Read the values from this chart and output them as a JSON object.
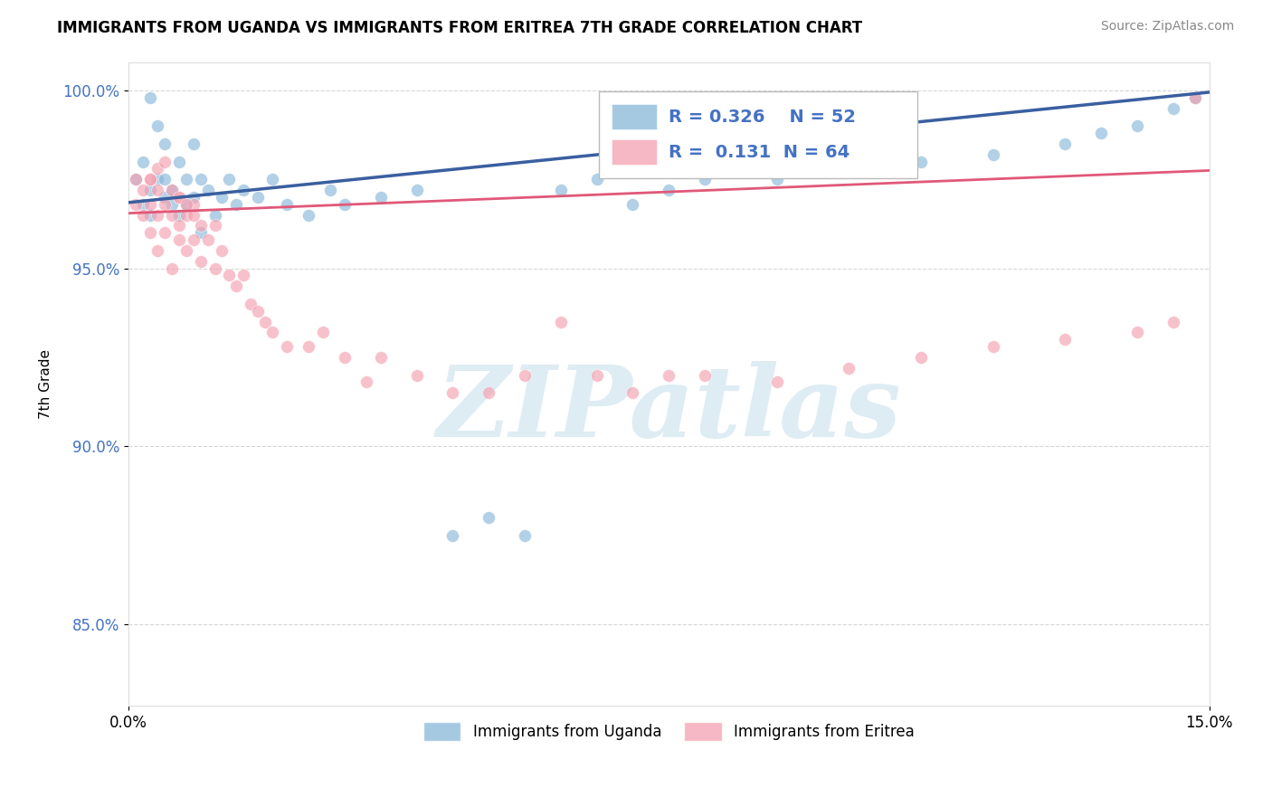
{
  "title": "IMMIGRANTS FROM UGANDA VS IMMIGRANTS FROM ERITREA 7TH GRADE CORRELATION CHART",
  "source_text": "Source: ZipAtlas.com",
  "ylabel": "7th Grade",
  "xlim": [
    0.0,
    0.15
  ],
  "ylim": [
    0.827,
    1.008
  ],
  "yticks": [
    0.85,
    0.9,
    0.95,
    1.0
  ],
  "ytick_labels": [
    "85.0%",
    "90.0%",
    "95.0%",
    "100.0%"
  ],
  "legend_label1": "Immigrants from Uganda",
  "legend_label2": "Immigrants from Eritrea",
  "r1": "0.326",
  "n1": 52,
  "r2": "0.131",
  "n2": 64,
  "color_uganda": "#89b8d9",
  "color_eritrea": "#f4a0b0",
  "line_color_uganda": "#3a5fa0",
  "line_color_eritrea": "#e05878",
  "watermark": "ZIPatlas",
  "background_color": "#ffffff",
  "grid_color": "#cccccc",
  "uganda_trendline": [
    0.9685,
    0.9995
  ],
  "eritrea_trendline": [
    0.9655,
    0.9775
  ],
  "uganda_points_x": [
    0.001,
    0.002,
    0.002,
    0.003,
    0.003,
    0.003,
    0.004,
    0.004,
    0.005,
    0.005,
    0.005,
    0.006,
    0.006,
    0.007,
    0.007,
    0.008,
    0.008,
    0.009,
    0.009,
    0.01,
    0.01,
    0.011,
    0.012,
    0.013,
    0.014,
    0.015,
    0.016,
    0.018,
    0.02,
    0.022,
    0.025,
    0.028,
    0.03,
    0.035,
    0.04,
    0.045,
    0.05,
    0.055,
    0.06,
    0.065,
    0.07,
    0.075,
    0.08,
    0.09,
    0.1,
    0.11,
    0.12,
    0.13,
    0.135,
    0.14,
    0.145,
    0.148
  ],
  "uganda_points_y": [
    0.975,
    0.968,
    0.98,
    0.972,
    0.965,
    0.998,
    0.99,
    0.975,
    0.985,
    0.97,
    0.975,
    0.968,
    0.972,
    0.98,
    0.965,
    0.975,
    0.968,
    0.985,
    0.97,
    0.975,
    0.96,
    0.972,
    0.965,
    0.97,
    0.975,
    0.968,
    0.972,
    0.97,
    0.975,
    0.968,
    0.965,
    0.972,
    0.968,
    0.97,
    0.972,
    0.875,
    0.88,
    0.875,
    0.972,
    0.975,
    0.968,
    0.972,
    0.975,
    0.975,
    0.978,
    0.98,
    0.982,
    0.985,
    0.988,
    0.99,
    0.995,
    0.998
  ],
  "eritrea_points_x": [
    0.001,
    0.001,
    0.002,
    0.002,
    0.003,
    0.003,
    0.003,
    0.004,
    0.004,
    0.004,
    0.005,
    0.005,
    0.006,
    0.006,
    0.007,
    0.007,
    0.007,
    0.008,
    0.008,
    0.009,
    0.009,
    0.01,
    0.01,
    0.011,
    0.012,
    0.012,
    0.013,
    0.014,
    0.015,
    0.016,
    0.017,
    0.018,
    0.019,
    0.02,
    0.022,
    0.025,
    0.027,
    0.03,
    0.033,
    0.035,
    0.04,
    0.045,
    0.05,
    0.055,
    0.06,
    0.065,
    0.07,
    0.075,
    0.08,
    0.09,
    0.1,
    0.11,
    0.12,
    0.13,
    0.14,
    0.145,
    0.148,
    0.003,
    0.004,
    0.005,
    0.006,
    0.007,
    0.008,
    0.009
  ],
  "eritrea_points_y": [
    0.975,
    0.968,
    0.965,
    0.972,
    0.96,
    0.968,
    0.975,
    0.955,
    0.965,
    0.972,
    0.96,
    0.968,
    0.95,
    0.965,
    0.958,
    0.962,
    0.97,
    0.955,
    0.965,
    0.958,
    0.968,
    0.952,
    0.962,
    0.958,
    0.95,
    0.962,
    0.955,
    0.948,
    0.945,
    0.948,
    0.94,
    0.938,
    0.935,
    0.932,
    0.928,
    0.928,
    0.932,
    0.925,
    0.918,
    0.925,
    0.92,
    0.915,
    0.915,
    0.92,
    0.935,
    0.92,
    0.915,
    0.92,
    0.92,
    0.918,
    0.922,
    0.925,
    0.928,
    0.93,
    0.932,
    0.935,
    0.998,
    0.975,
    0.978,
    0.98,
    0.972,
    0.97,
    0.968,
    0.965
  ]
}
